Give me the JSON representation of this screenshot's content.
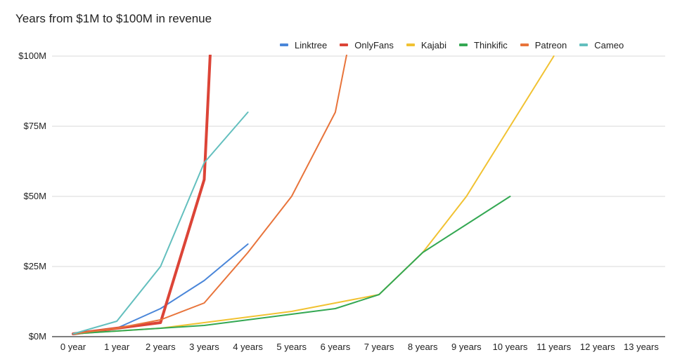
{
  "chart_data": {
    "type": "line",
    "title": "Years from $1M to $100M in revenue",
    "xlabel": "",
    "ylabel": "",
    "categories": [
      "0 year",
      "1 year",
      "2 years",
      "3 years",
      "4 years",
      "5 years",
      "6 years",
      "7 years",
      "8 years",
      "9 years",
      "10 years",
      "11 years",
      "12 years",
      "13 years"
    ],
    "y_ticks": [
      "$0M",
      "$25M",
      "$50M",
      "$75M",
      "$100M"
    ],
    "y_tick_values": [
      0,
      25,
      50,
      75,
      100
    ],
    "ylim": [
      0,
      100
    ],
    "grid": true,
    "legend_position": "top-right",
    "series": [
      {
        "name": "Linktree",
        "color": "#4a86d9",
        "values": [
          1,
          3,
          10,
          20,
          33,
          null,
          null,
          null,
          null,
          null,
          null,
          null,
          null,
          null
        ]
      },
      {
        "name": "OnlyFans",
        "color": "#dc4437",
        "emphasized": true,
        "values": [
          1,
          3,
          5,
          56,
          null,
          null,
          null,
          null,
          null,
          null,
          null,
          null,
          null,
          null
        ],
        "overflow": {
          "x": 3.15,
          "y": 105
        }
      },
      {
        "name": "Kajabi",
        "color": "#f1c232",
        "values": [
          1,
          2,
          3,
          5,
          7,
          9,
          12,
          15,
          30,
          50,
          75,
          100,
          null,
          null
        ]
      },
      {
        "name": "Thinkific",
        "color": "#34a853",
        "values": [
          1,
          2,
          3,
          4,
          6,
          8,
          10,
          15,
          30,
          40,
          50,
          null,
          null,
          null
        ]
      },
      {
        "name": "Patreon",
        "color": "#e8743b",
        "values": [
          1,
          3,
          6,
          12,
          30,
          50,
          80,
          null,
          null,
          null,
          null,
          null,
          null,
          null
        ],
        "overflow": {
          "x": 6.38,
          "y": 110
        }
      },
      {
        "name": "Cameo",
        "color": "#63bfbe",
        "values": [
          1,
          5.5,
          25,
          62,
          80,
          null,
          null,
          null,
          null,
          null,
          null,
          null,
          null,
          null
        ]
      }
    ]
  }
}
